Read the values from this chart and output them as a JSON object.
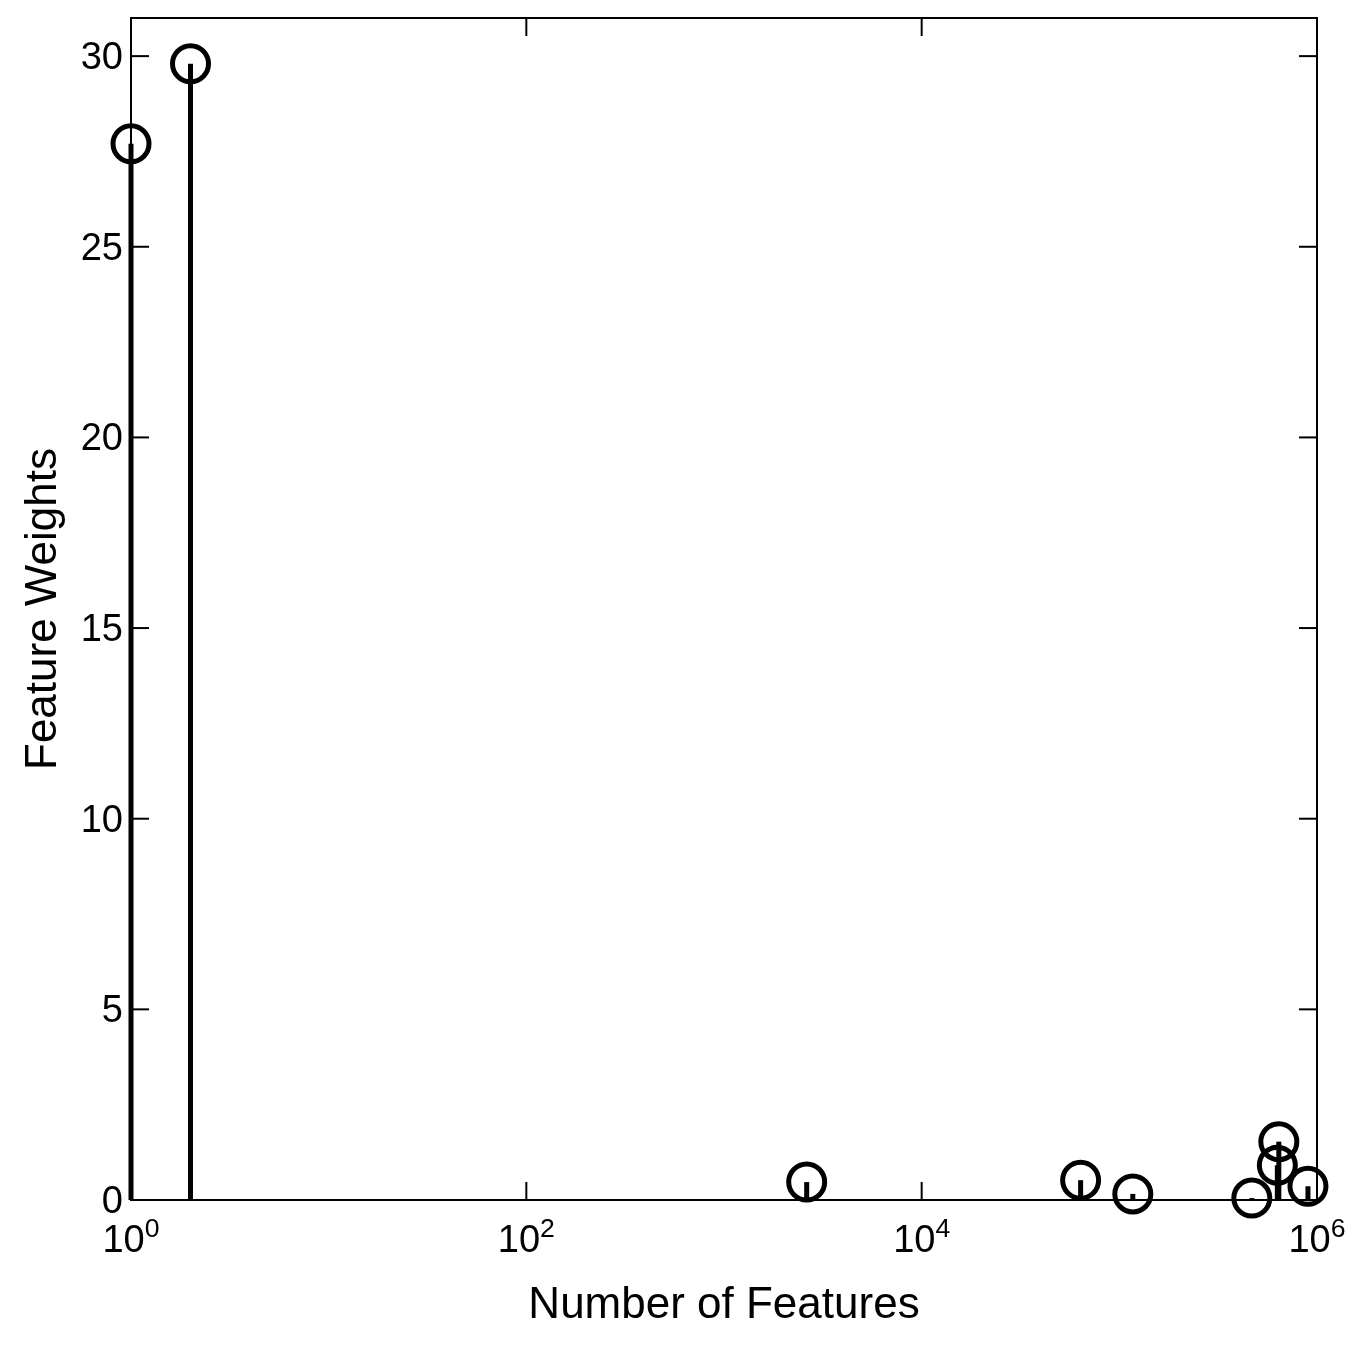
{
  "chart_data": {
    "type": "lollipop",
    "xlabel": "Number of Features",
    "ylabel": "Feature Weights",
    "log": "x",
    "marker": "circle",
    "xlim": [
      1,
      1000000
    ],
    "ylim": [
      0,
      31
    ],
    "xticks": [
      {
        "value": 1,
        "label": "10$^{0}$"
      },
      {
        "value": 100,
        "label": "10$^{2}$"
      },
      {
        "value": 10000,
        "label": "10$^{4}$"
      },
      {
        "value": 1000000,
        "label": "10$^{6}$"
      }
    ],
    "yticks": [
      0,
      5,
      10,
      15,
      20,
      25,
      30
    ],
    "series": [
      {
        "color": "#000000",
        "x": [
          1,
          2,
          2620,
          63700,
          117000,
          468000,
          641000,
          630000,
          900000
        ],
        "values": [
          27.7,
          29.8,
          0.47,
          0.52,
          0.16,
          0.05,
          1.53,
          0.91,
          0.36
        ]
      }
    ]
  }
}
